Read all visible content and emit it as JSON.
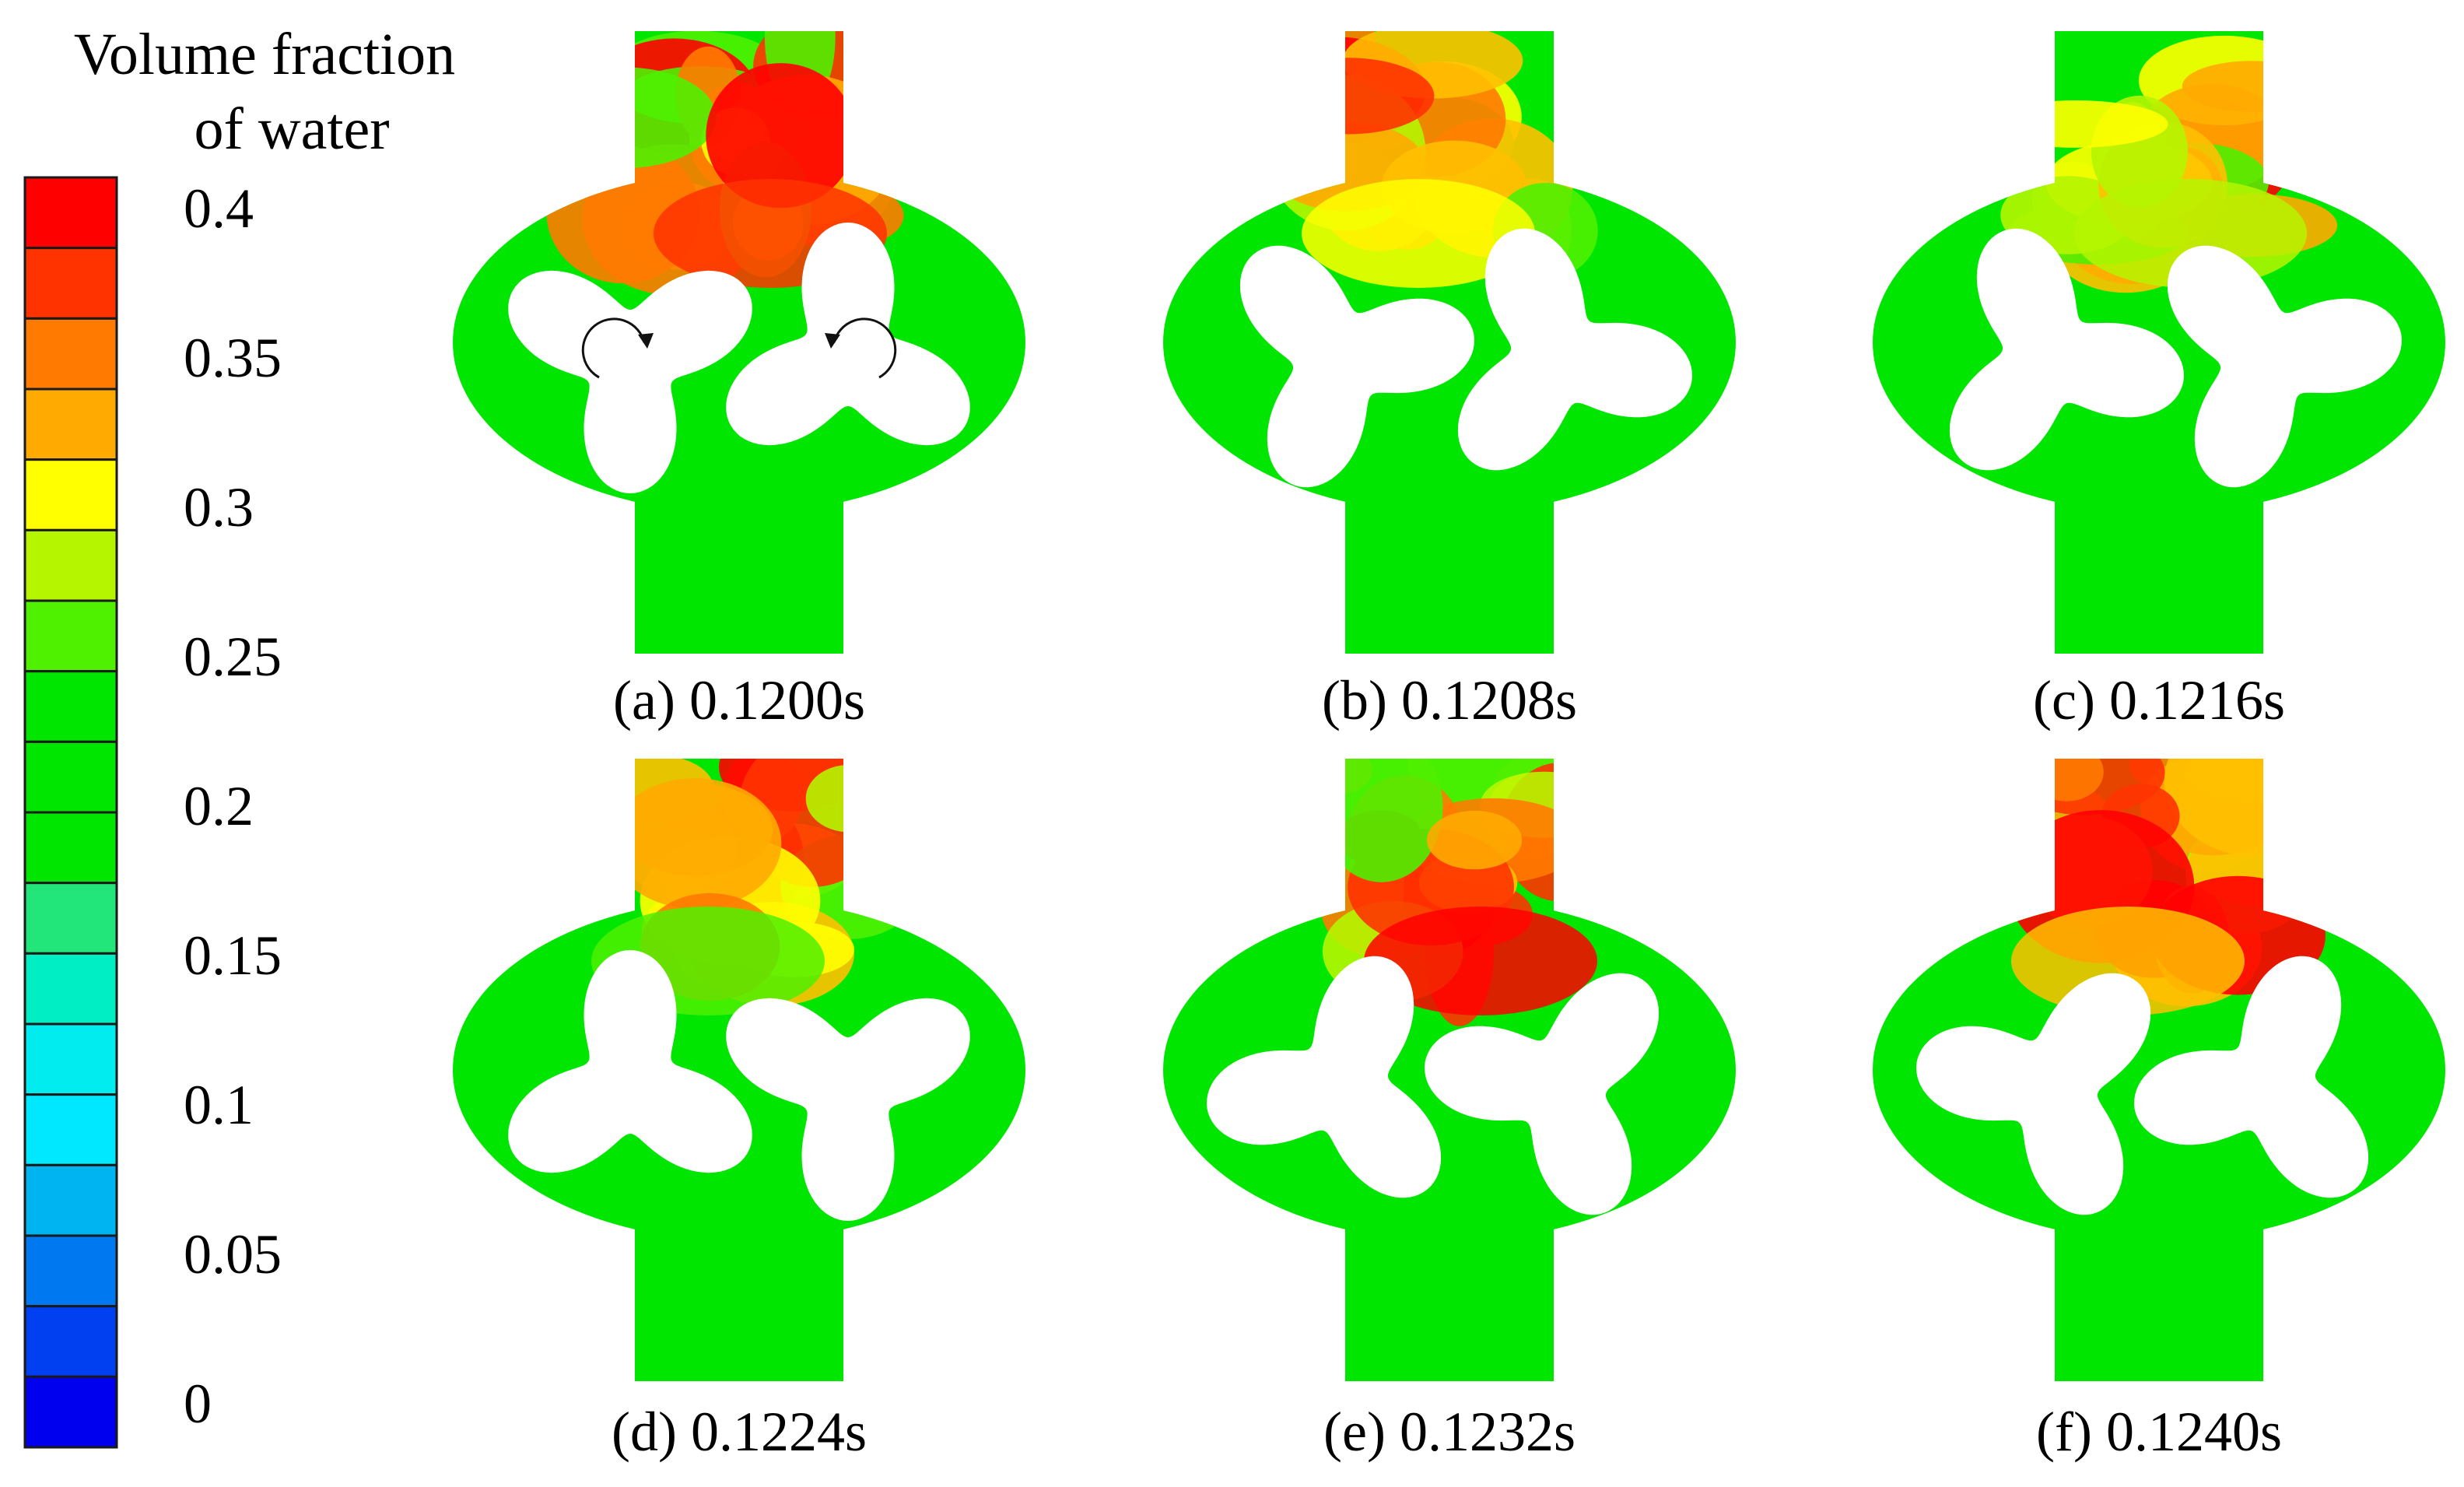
{
  "legend": {
    "title_lines": [
      "Volume fraction",
      "of water"
    ],
    "ticks": [
      "0.4",
      "0.35",
      "0.3",
      "0.25",
      "0.2",
      "0.15",
      "0.1",
      "0.05",
      "0"
    ],
    "colors": [
      "#ff0000",
      "#ff3300",
      "#ff7a00",
      "#ffaa00",
      "#ffff00",
      "#b5f500",
      "#4ff000",
      "#00e600",
      "#00e600",
      "#00e600",
      "#22e67a",
      "#00eec4",
      "#00ecee",
      "#00e8ff",
      "#00b4f2",
      "#0078f0",
      "#0040f0",
      "#0000ee"
    ]
  },
  "panels": [
    {
      "label": "(a) 0.1200s",
      "phase_deg": 0,
      "show_rotation": true
    },
    {
      "label": "(b) 0.1208s",
      "phase_deg": 20,
      "show_rotation": false
    },
    {
      "label": "(c) 0.1216s",
      "phase_deg": 40,
      "show_rotation": false
    },
    {
      "label": "(d) 0.1224s",
      "phase_deg": 60,
      "show_rotation": false
    },
    {
      "label": "(e) 0.1232s",
      "phase_deg": 80,
      "show_rotation": false
    },
    {
      "label": "(f) 0.1240s",
      "phase_deg": 100,
      "show_rotation": false
    }
  ],
  "colors": {
    "water_low": "#00e600",
    "lobe": "#ffffff"
  }
}
